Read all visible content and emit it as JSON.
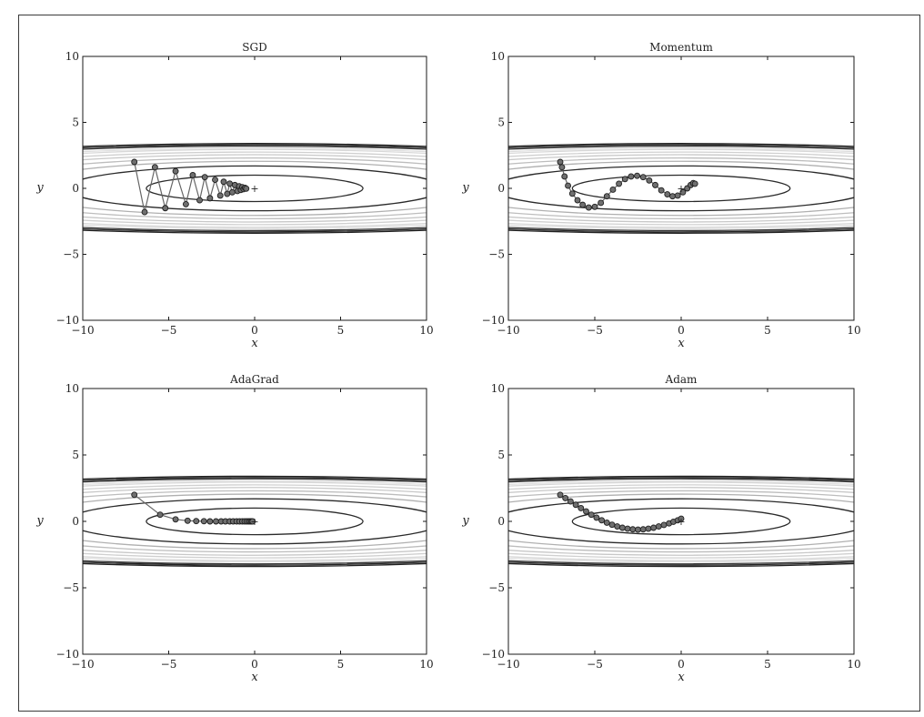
{
  "figure": {
    "colors": {
      "frame": "#3a3a3a",
      "axes": "#1a1a1a",
      "path": "#666666",
      "marker_fill": "#6f6f6f",
      "marker_edge": "#1f1f1f"
    },
    "contour_levels": [
      {
        "a": 6.3,
        "b": 1.0,
        "color": "#2a2a2a"
      },
      {
        "a": 10.95,
        "b": 1.7,
        "color": "#2a2a2a"
      },
      {
        "a": 14.1,
        "b": 2.05,
        "color": "#b0b0b0"
      },
      {
        "a": 16.7,
        "b": 2.3,
        "color": "#bdbdbd"
      },
      {
        "a": 19.0,
        "b": 2.55,
        "color": "#c8c8c8"
      },
      {
        "a": 21.0,
        "b": 2.75,
        "color": "#d0d0d0"
      },
      {
        "a": 23.0,
        "b": 2.95,
        "color": "#d8d8d8"
      },
      {
        "a": 24.5,
        "b": 3.05,
        "color": "#dcdcdc"
      },
      {
        "a": 26.8,
        "b": 3.2,
        "color": "#333333"
      },
      {
        "a": 27.6,
        "b": 3.3,
        "color": "#222222"
      },
      {
        "a": 28.3,
        "b": 3.4,
        "color": "#222222"
      }
    ]
  },
  "chart_data": [
    {
      "type": "line",
      "title": "SGD",
      "xlabel": "x",
      "ylabel": "y",
      "xlim": [
        -10,
        10
      ],
      "ylim": [
        -10,
        10
      ],
      "xticks": [
        "−10",
        "−5",
        "0",
        "5",
        "10"
      ],
      "yticks": [
        "−10",
        "−5",
        "0",
        "5",
        "10"
      ],
      "minimum_marker": "+",
      "path": [
        [
          -7.0,
          2.0
        ],
        [
          -6.4,
          -1.8
        ],
        [
          -5.8,
          1.6
        ],
        [
          -5.2,
          -1.5
        ],
        [
          -4.6,
          1.3
        ],
        [
          -4.0,
          -1.2
        ],
        [
          -3.6,
          1.0
        ],
        [
          -3.2,
          -0.9
        ],
        [
          -2.9,
          0.85
        ],
        [
          -2.6,
          -0.75
        ],
        [
          -2.3,
          0.65
        ],
        [
          -2.0,
          -0.55
        ],
        [
          -1.8,
          0.5
        ],
        [
          -1.6,
          -0.42
        ],
        [
          -1.45,
          0.36
        ],
        [
          -1.3,
          -0.3
        ],
        [
          -1.15,
          0.25
        ],
        [
          -1.0,
          -0.2
        ],
        [
          -0.9,
          0.16
        ],
        [
          -0.8,
          -0.12
        ],
        [
          -0.72,
          0.09
        ],
        [
          -0.64,
          -0.06
        ],
        [
          -0.56,
          0.04
        ],
        [
          -0.49,
          -0.02
        ]
      ]
    },
    {
      "type": "line",
      "title": "Momentum",
      "xlabel": "x",
      "ylabel": "y",
      "xlim": [
        -10,
        10
      ],
      "ylim": [
        -10,
        10
      ],
      "xticks": [
        "−10",
        "−5",
        "0",
        "5",
        "10"
      ],
      "yticks": [
        "−10",
        "−5",
        "0",
        "5",
        "10"
      ],
      "minimum_marker": "+",
      "path": [
        [
          -7.0,
          2.0
        ],
        [
          -6.9,
          1.6
        ],
        [
          -6.75,
          0.9
        ],
        [
          -6.55,
          0.2
        ],
        [
          -6.3,
          -0.4
        ],
        [
          -6.0,
          -0.9
        ],
        [
          -5.7,
          -1.25
        ],
        [
          -5.35,
          -1.45
        ],
        [
          -5.0,
          -1.4
        ],
        [
          -4.65,
          -1.1
        ],
        [
          -4.3,
          -0.6
        ],
        [
          -3.95,
          -0.1
        ],
        [
          -3.6,
          0.35
        ],
        [
          -3.25,
          0.7
        ],
        [
          -2.9,
          0.9
        ],
        [
          -2.55,
          0.95
        ],
        [
          -2.2,
          0.85
        ],
        [
          -1.85,
          0.6
        ],
        [
          -1.5,
          0.25
        ],
        [
          -1.15,
          -0.15
        ],
        [
          -0.8,
          -0.45
        ],
        [
          -0.5,
          -0.6
        ],
        [
          -0.2,
          -0.55
        ],
        [
          0.1,
          -0.3
        ],
        [
          0.35,
          0.0
        ],
        [
          0.55,
          0.25
        ],
        [
          0.7,
          0.4
        ],
        [
          0.8,
          0.35
        ]
      ]
    },
    {
      "type": "line",
      "title": "AdaGrad",
      "xlabel": "x",
      "ylabel": "y",
      "xlim": [
        -10,
        10
      ],
      "ylim": [
        -10,
        10
      ],
      "xticks": [
        "−10",
        "−5",
        "0",
        "5",
        "10"
      ],
      "yticks": [
        "−10",
        "−5",
        "0",
        "5",
        "10"
      ],
      "minimum_marker": "+",
      "path": [
        [
          -7.0,
          2.0
        ],
        [
          -5.5,
          0.5
        ],
        [
          -4.6,
          0.15
        ],
        [
          -3.9,
          0.05
        ],
        [
          -3.4,
          0.02
        ],
        [
          -2.95,
          0.01
        ],
        [
          -2.6,
          0.0
        ],
        [
          -2.25,
          0.0
        ],
        [
          -1.95,
          0.0
        ],
        [
          -1.7,
          0.0
        ],
        [
          -1.45,
          0.0
        ],
        [
          -1.25,
          0.0
        ],
        [
          -1.05,
          0.0
        ],
        [
          -0.88,
          0.0
        ],
        [
          -0.72,
          0.0
        ],
        [
          -0.58,
          0.0
        ],
        [
          -0.46,
          0.0
        ],
        [
          -0.35,
          0.0
        ],
        [
          -0.26,
          0.0
        ],
        [
          -0.18,
          0.0
        ],
        [
          -0.12,
          0.0
        ]
      ]
    },
    {
      "type": "line",
      "title": "Adam",
      "xlabel": "x",
      "ylabel": "y",
      "xlim": [
        -10,
        10
      ],
      "ylim": [
        -10,
        10
      ],
      "xticks": [
        "−10",
        "−5",
        "0",
        "5",
        "10"
      ],
      "yticks": [
        "−10",
        "−5",
        "0",
        "5",
        "10"
      ],
      "minimum_marker": "+",
      "path": [
        [
          -7.0,
          2.0
        ],
        [
          -6.7,
          1.75
        ],
        [
          -6.4,
          1.5
        ],
        [
          -6.1,
          1.25
        ],
        [
          -5.8,
          1.0
        ],
        [
          -5.5,
          0.75
        ],
        [
          -5.2,
          0.5
        ],
        [
          -4.9,
          0.28
        ],
        [
          -4.6,
          0.08
        ],
        [
          -4.3,
          -0.1
        ],
        [
          -4.0,
          -0.25
        ],
        [
          -3.7,
          -0.38
        ],
        [
          -3.4,
          -0.48
        ],
        [
          -3.1,
          -0.55
        ],
        [
          -2.8,
          -0.6
        ],
        [
          -2.5,
          -0.62
        ],
        [
          -2.2,
          -0.6
        ],
        [
          -1.9,
          -0.55
        ],
        [
          -1.6,
          -0.48
        ],
        [
          -1.3,
          -0.38
        ],
        [
          -1.0,
          -0.27
        ],
        [
          -0.7,
          -0.15
        ],
        [
          -0.45,
          -0.03
        ],
        [
          -0.2,
          0.08
        ],
        [
          0.0,
          0.2
        ]
      ]
    }
  ]
}
